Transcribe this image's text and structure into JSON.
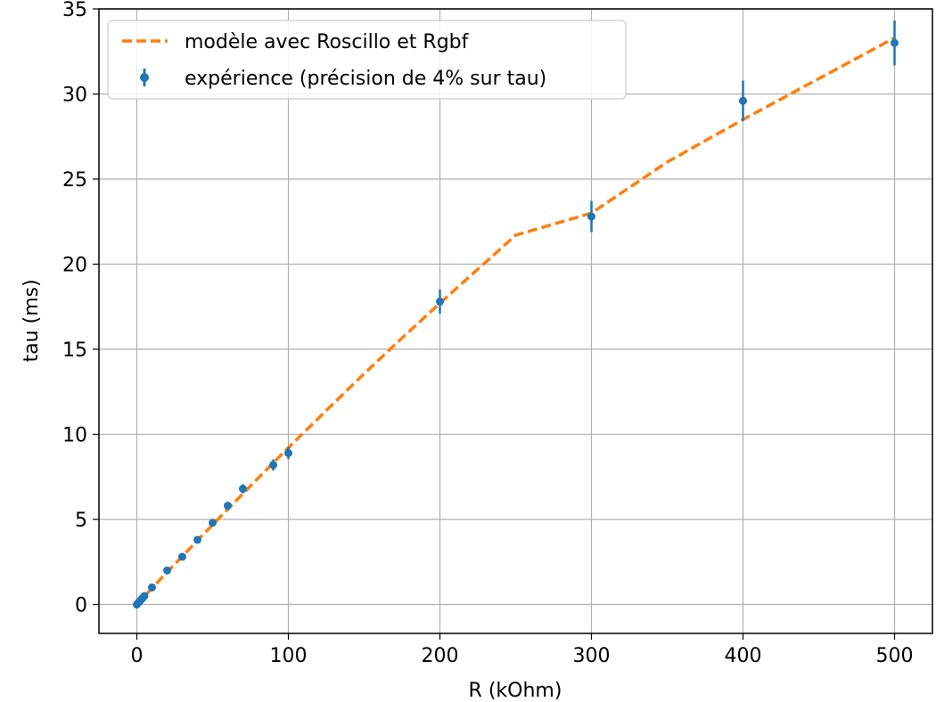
{
  "chart_data": {
    "type": "scatter",
    "title": "",
    "xlabel": "R (kOhm)",
    "ylabel": "tau (ms)",
    "xlim": [
      -25,
      525
    ],
    "ylim": [
      -1.7,
      35
    ],
    "grid": true,
    "legend_position": "top-left",
    "x_ticks": [
      "0",
      "100",
      "200",
      "300",
      "400",
      "500"
    ],
    "y_ticks": [
      "0",
      "5",
      "10",
      "15",
      "20",
      "25",
      "30",
      "35"
    ],
    "series": [
      {
        "name": "modèle avec Roscillo et Rgbf",
        "kind": "line",
        "style": "dashed",
        "color": "#ff7f0e",
        "x": [
          0,
          10,
          20,
          30,
          40,
          50,
          60,
          70,
          80,
          90,
          100,
          125,
          150,
          175,
          200,
          250,
          300,
          350,
          400,
          450,
          500
        ],
        "y": [
          0,
          0.95,
          1.9,
          2.83,
          3.76,
          4.68,
          5.6,
          6.51,
          7.42,
          8.32,
          9.21,
          11.4,
          13.56,
          15.66,
          17.7,
          21.7,
          23.0,
          26.0,
          28.5,
          30.9,
          33.3
        ]
      },
      {
        "name": "expérience (précision de 4% sur tau)",
        "kind": "errorbar",
        "color": "#1f77b4",
        "x": [
          0,
          1,
          2,
          3,
          4,
          5,
          10,
          20,
          30,
          40,
          50,
          60,
          70,
          90,
          100,
          200,
          300,
          400,
          500
        ],
        "y": [
          0,
          0.1,
          0.2,
          0.3,
          0.4,
          0.5,
          1.0,
          2.0,
          2.8,
          3.8,
          4.8,
          5.8,
          6.8,
          8.2,
          8.9,
          17.8,
          22.8,
          29.6,
          33.0
        ],
        "error_percent": 4
      }
    ]
  }
}
